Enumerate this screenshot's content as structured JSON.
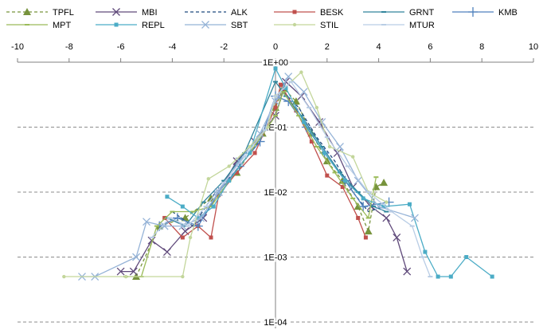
{
  "chart_data": {
    "type": "line",
    "title": "",
    "xlabel": "",
    "ylabel": "",
    "x_axis_position": "top",
    "xlim": [
      -10,
      10
    ],
    "x_ticks": [
      -10,
      -8,
      -6,
      -4,
      -2,
      0,
      2,
      4,
      6,
      8,
      10
    ],
    "x_tick_labels": [
      "-10",
      "-8",
      "-6",
      "-4",
      "-2",
      "0",
      "2",
      "4",
      "6",
      "8",
      "10"
    ],
    "y_scale": "log",
    "ylim": [
      0.0001,
      1
    ],
    "y_ticks": [
      1,
      0.1,
      0.01,
      0.001,
      0.0001
    ],
    "y_tick_labels": [
      "1E+00",
      "1E-01",
      "1E-02",
      "1E-03",
      "1E-04"
    ],
    "y_axis_crosses_x_at": 0,
    "grid": "horizontal dashed",
    "legend_placement": "top",
    "series": [
      {
        "name": "TPFL",
        "color": "#77933c",
        "dash": "4 3",
        "marker": "triangle",
        "points": [
          [
            -5.4,
            0.0005
          ],
          [
            -4.5,
            0.003
          ],
          [
            -3.5,
            0.004
          ],
          [
            -2.5,
            0.008
          ],
          [
            -1.5,
            0.02
          ],
          [
            -0.5,
            0.08
          ],
          [
            0,
            0.2
          ],
          [
            0.3,
            0.4
          ],
          [
            0.8,
            0.25
          ],
          [
            1.4,
            0.08
          ],
          [
            2,
            0.03
          ],
          [
            2.6,
            0.015
          ],
          [
            3.2,
            0.006
          ],
          [
            3.6,
            0.0025
          ],
          [
            3.9,
            0.012
          ],
          [
            4.2,
            0.014
          ]
        ]
      },
      {
        "name": "MBI",
        "color": "#604a7b",
        "dash": "",
        "marker": "x",
        "points": [
          [
            -6,
            0.0006
          ],
          [
            -5.5,
            0.0006
          ],
          [
            -4.8,
            0.0018
          ],
          [
            -4.2,
            0.0012
          ],
          [
            -3.5,
            0.0025
          ],
          [
            -2.8,
            0.004
          ],
          [
            -2.2,
            0.01
          ],
          [
            -1.5,
            0.03
          ],
          [
            -0.8,
            0.06
          ],
          [
            0,
            0.15
          ],
          [
            0.4,
            0.5
          ],
          [
            1,
            0.3
          ],
          [
            1.7,
            0.12
          ],
          [
            2.4,
            0.04
          ],
          [
            3,
            0.012
          ],
          [
            3.7,
            0.006
          ],
          [
            4.3,
            0.004
          ],
          [
            4.7,
            0.002
          ],
          [
            5.1,
            0.0006
          ]
        ]
      },
      {
        "name": "ALK",
        "color": "#1f497d",
        "dash": "4 3",
        "marker": "none",
        "points": [
          [
            -4,
            0.005
          ],
          [
            -3.2,
            0.003
          ],
          [
            -2.4,
            0.009
          ],
          [
            -1.6,
            0.02
          ],
          [
            -0.8,
            0.05
          ],
          [
            0,
            0.15
          ],
          [
            0.3,
            0.35
          ],
          [
            0.9,
            0.2
          ],
          [
            1.6,
            0.07
          ],
          [
            2.3,
            0.03
          ],
          [
            3,
            0.01
          ],
          [
            3.6,
            0.005
          ],
          [
            4.2,
            0.006
          ]
        ]
      },
      {
        "name": "BESK",
        "color": "#c0504d",
        "dash": "",
        "marker": "square",
        "points": [
          [
            -4.3,
            0.004
          ],
          [
            -3.6,
            0.002
          ],
          [
            -3,
            0.003
          ],
          [
            -2.5,
            0.002
          ],
          [
            -2.2,
            0.009
          ],
          [
            -1.5,
            0.02
          ],
          [
            -0.8,
            0.04
          ],
          [
            0,
            0.2
          ],
          [
            0.2,
            0.45
          ],
          [
            0.8,
            0.18
          ],
          [
            1.4,
            0.06
          ],
          [
            2,
            0.018
          ],
          [
            2.6,
            0.012
          ],
          [
            3.2,
            0.004
          ],
          [
            3.5,
            0.002
          ]
        ]
      },
      {
        "name": "GRNT",
        "color": "#31859c",
        "dash": "",
        "marker": "dash",
        "points": [
          [
            -4.2,
            0.004
          ],
          [
            -3.5,
            0.003
          ],
          [
            -2.8,
            0.007
          ],
          [
            -2,
            0.015
          ],
          [
            -1.2,
            0.04
          ],
          [
            0,
            0.5
          ],
          [
            0.4,
            0.3
          ],
          [
            1,
            0.15
          ],
          [
            1.8,
            0.05
          ],
          [
            2.5,
            0.02
          ],
          [
            3.2,
            0.01
          ],
          [
            3.8,
            0.006
          ],
          [
            4.3,
            0.005
          ]
        ]
      },
      {
        "name": "KMB",
        "color": "#4f81bd",
        "dash": "",
        "marker": "plus",
        "points": [
          [
            -4.5,
            0.003
          ],
          [
            -3.8,
            0.004
          ],
          [
            -3,
            0.003
          ],
          [
            -2.2,
            0.01
          ],
          [
            -1.4,
            0.025
          ],
          [
            -0.6,
            0.06
          ],
          [
            0,
            0.3
          ],
          [
            0.5,
            0.25
          ],
          [
            1.2,
            0.1
          ],
          [
            1.9,
            0.04
          ],
          [
            2.7,
            0.015
          ],
          [
            3.4,
            0.006
          ],
          [
            4.4,
            0.007
          ]
        ]
      },
      {
        "name": "MPT",
        "color": "#9bbb59",
        "dash": "",
        "marker": "dash",
        "points": [
          [
            -5.8,
            0.0005
          ],
          [
            -5.2,
            0.0005
          ],
          [
            -4.6,
            0.003
          ],
          [
            -4,
            0.005
          ],
          [
            -3.2,
            0.005
          ],
          [
            -2.5,
            0.006
          ],
          [
            -1.8,
            0.015
          ],
          [
            -1,
            0.04
          ],
          [
            -0.3,
            0.1
          ],
          [
            0,
            0.15
          ],
          [
            0.3,
            0.35
          ],
          [
            0.9,
            0.15
          ],
          [
            1.6,
            0.05
          ],
          [
            2.3,
            0.02
          ],
          [
            3,
            0.008
          ],
          [
            3.6,
            0.004
          ],
          [
            3.9,
            0.017
          ]
        ]
      },
      {
        "name": "REPL",
        "color": "#4bacc6",
        "dash": "",
        "marker": "square",
        "points": [
          [
            -4.2,
            0.0085
          ],
          [
            -3.6,
            0.006
          ],
          [
            -3,
            0.004
          ],
          [
            -2.4,
            0.006
          ],
          [
            -1.8,
            0.015
          ],
          [
            -1,
            0.04
          ],
          [
            0,
            0.8
          ],
          [
            0.4,
            0.4
          ],
          [
            1.1,
            0.12
          ],
          [
            1.9,
            0.04
          ],
          [
            2.7,
            0.015
          ],
          [
            3.4,
            0.008
          ],
          [
            4.2,
            0.006
          ],
          [
            5.2,
            0.0065
          ],
          [
            5.8,
            0.0012
          ],
          [
            6.3,
            0.0005
          ],
          [
            6.8,
            0.0005
          ],
          [
            7.4,
            0.001
          ],
          [
            8.4,
            0.0005
          ]
        ]
      },
      {
        "name": "SBT",
        "color": "#95b3d7",
        "dash": "",
        "marker": "x",
        "points": [
          [
            -7.5,
            0.0005
          ],
          [
            -7,
            0.0005
          ],
          [
            -5.4,
            0.001
          ],
          [
            -5,
            0.0035
          ],
          [
            -4.3,
            0.003
          ],
          [
            -3.6,
            0.003
          ],
          [
            -2.9,
            0.004
          ],
          [
            -2.2,
            0.01
          ],
          [
            -1.4,
            0.03
          ],
          [
            -0.6,
            0.08
          ],
          [
            0,
            0.25
          ],
          [
            0.5,
            0.6
          ],
          [
            1.1,
            0.35
          ],
          [
            1.8,
            0.12
          ],
          [
            2.5,
            0.05
          ],
          [
            3.2,
            0.015
          ],
          [
            4,
            0.006
          ],
          [
            5.4,
            0.004
          ]
        ]
      },
      {
        "name": "STIL",
        "color": "#c3d69b",
        "dash": "",
        "marker": "dot",
        "points": [
          [
            -8.2,
            0.0005
          ],
          [
            -5.8,
            0.0005
          ],
          [
            -3.6,
            0.0005
          ],
          [
            -3.3,
            0.002
          ],
          [
            -2.6,
            0.016
          ],
          [
            -1.8,
            0.025
          ],
          [
            -1,
            0.05
          ],
          [
            -0.3,
            0.1
          ],
          [
            0,
            0.3
          ],
          [
            1,
            0.7
          ],
          [
            1.6,
            0.2
          ],
          [
            2.1,
            0.05
          ],
          [
            3,
            0.035
          ],
          [
            3.6,
            0.01
          ],
          [
            4.3,
            0.007
          ]
        ]
      },
      {
        "name": "MTUR",
        "color": "#b9cde5",
        "dash": "",
        "marker": "dash",
        "points": [
          [
            -4.8,
            0.002
          ],
          [
            -4.1,
            0.004
          ],
          [
            -3.4,
            0.003
          ],
          [
            -2.7,
            0.006
          ],
          [
            -2,
            0.014
          ],
          [
            -1.2,
            0.035
          ],
          [
            -0.4,
            0.09
          ],
          [
            0,
            0.3
          ],
          [
            0.6,
            0.5
          ],
          [
            1.3,
            0.2
          ],
          [
            2,
            0.07
          ],
          [
            2.8,
            0.025
          ],
          [
            3.6,
            0.01
          ],
          [
            4.5,
            0.005
          ],
          [
            5.3,
            0.003
          ],
          [
            5.7,
            0.001
          ],
          [
            6,
            0.0005
          ]
        ]
      }
    ]
  }
}
